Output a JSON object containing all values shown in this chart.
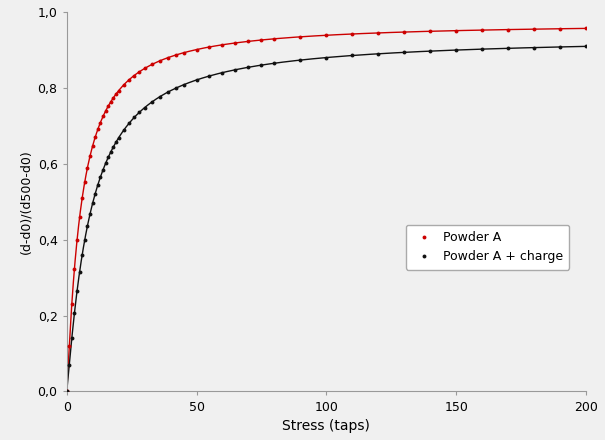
{
  "title": "",
  "xlabel": "Stress (taps)",
  "ylabel": "(d-d0)/(d500-d0)",
  "xlim": [
    0,
    200
  ],
  "ylim": [
    0.0,
    1.0
  ],
  "yticks": [
    0.0,
    0.2,
    0.4,
    0.6,
    0.8,
    1.0
  ],
  "ytick_labels": [
    "0,0",
    "0,2",
    "0,4",
    "0,6",
    "0,8",
    "1,0"
  ],
  "xticks": [
    0,
    50,
    100,
    150,
    200
  ],
  "legend_labels": [
    "Powder A",
    "Powder A + charge"
  ],
  "line_colors": [
    "#cc0000",
    "#111111"
  ],
  "marker": "o",
  "marker_size": 2.8,
  "line_width": 1.0,
  "background_color": "#f0f0f0",
  "figsize": [
    6.05,
    4.4
  ],
  "dpi": 100,
  "curve_A": {
    "a": 0.97,
    "b": 0.22,
    "c": 0.55
  },
  "curve_B": {
    "a": 0.935,
    "b": 0.12,
    "c": 0.55
  }
}
